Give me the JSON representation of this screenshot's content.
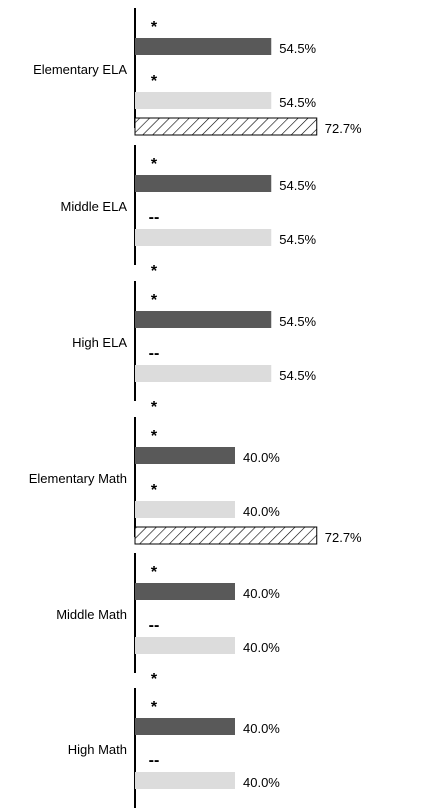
{
  "chart_data": {
    "type": "bar",
    "orientation": "horizontal",
    "xlim": [
      0,
      100
    ],
    "value_suffix": "%",
    "series_colors": [
      "#595959",
      "#dcdcdc",
      "hatched"
    ],
    "groups": [
      {
        "category": "Elementary ELA",
        "bars": [
          {
            "series": 0,
            "value": 54.5,
            "label": "54.5%",
            "marker": "*"
          },
          {
            "series": 1,
            "value": 54.5,
            "label": "54.5%",
            "marker": "*"
          },
          {
            "series": 2,
            "value": 72.7,
            "label": "72.7%",
            "marker": null
          }
        ]
      },
      {
        "category": "Middle ELA",
        "bars": [
          {
            "series": 0,
            "value": 54.5,
            "label": "54.5%",
            "marker": "*"
          },
          {
            "series": 1,
            "value": 54.5,
            "label": "54.5%",
            "marker": "--"
          },
          {
            "series": 2,
            "value": null,
            "label": null,
            "marker": "*"
          }
        ]
      },
      {
        "category": "High ELA",
        "bars": [
          {
            "series": 0,
            "value": 54.5,
            "label": "54.5%",
            "marker": "*"
          },
          {
            "series": 1,
            "value": 54.5,
            "label": "54.5%",
            "marker": "--"
          },
          {
            "series": 2,
            "value": null,
            "label": null,
            "marker": "*"
          }
        ]
      },
      {
        "category": "Elementary Math",
        "bars": [
          {
            "series": 0,
            "value": 40.0,
            "label": "40.0%",
            "marker": "*"
          },
          {
            "series": 1,
            "value": 40.0,
            "label": "40.0%",
            "marker": "*"
          },
          {
            "series": 2,
            "value": 72.7,
            "label": "72.7%",
            "marker": null
          }
        ]
      },
      {
        "category": "Middle Math",
        "bars": [
          {
            "series": 0,
            "value": 40.0,
            "label": "40.0%",
            "marker": "*"
          },
          {
            "series": 1,
            "value": 40.0,
            "label": "40.0%",
            "marker": "--"
          },
          {
            "series": 2,
            "value": null,
            "label": null,
            "marker": "*"
          }
        ]
      },
      {
        "category": "High Math",
        "bars": [
          {
            "series": 0,
            "value": 40.0,
            "label": "40.0%",
            "marker": "*"
          },
          {
            "series": 1,
            "value": 40.0,
            "label": "40.0%",
            "marker": "--"
          },
          {
            "series": 2,
            "value": null,
            "label": null,
            "marker": "*"
          }
        ]
      }
    ]
  }
}
